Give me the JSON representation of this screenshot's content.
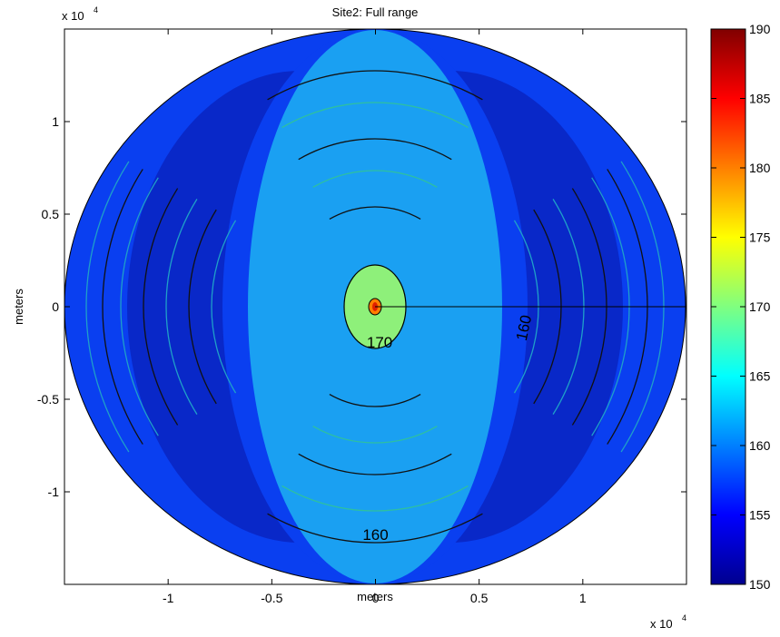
{
  "chart_data": {
    "type": "heatmap",
    "title": "Site2: Full range",
    "xlabel": "meters",
    "ylabel": "meters",
    "x_exponent_label": "x 10",
    "y_exponent_label": "x 10",
    "exponent": "4",
    "xlim": [
      -1.5,
      1.5
    ],
    "ylim": [
      -1.5,
      1.5
    ],
    "x_ticks": [
      -1,
      -0.5,
      0,
      0.5,
      1
    ],
    "x_tick_labels": [
      "-1",
      "-0.5",
      "0",
      "0.5",
      "1"
    ],
    "y_ticks": [
      1,
      0.5,
      0,
      -0.5,
      -1
    ],
    "y_tick_labels": [
      "1",
      "0.5",
      "0",
      "-0.5",
      "-1"
    ],
    "colorbar": {
      "min": 150,
      "max": 190,
      "ticks": [
        190,
        185,
        180,
        175,
        170,
        165,
        160,
        155,
        150
      ],
      "tick_labels": [
        "190",
        "185",
        "180",
        "175",
        "170",
        "165",
        "160",
        "155",
        "150"
      ],
      "colormap": "jet"
    },
    "contour_labels": [
      {
        "text": "170",
        "x": 0.02,
        "y": -0.22
      },
      {
        "text": "160",
        "x": 0.0,
        "y": -1.26
      },
      {
        "text": "160",
        "x": 0.74,
        "y": -0.12
      }
    ],
    "colors": {
      "outer_region": "#0a3ff0",
      "deep_band": "#0928c8",
      "mid_region": "#1aa0f2",
      "inner_region": "#8ef07a",
      "source_outer": "#ff7f00",
      "source_inner": "#e02000"
    }
  }
}
